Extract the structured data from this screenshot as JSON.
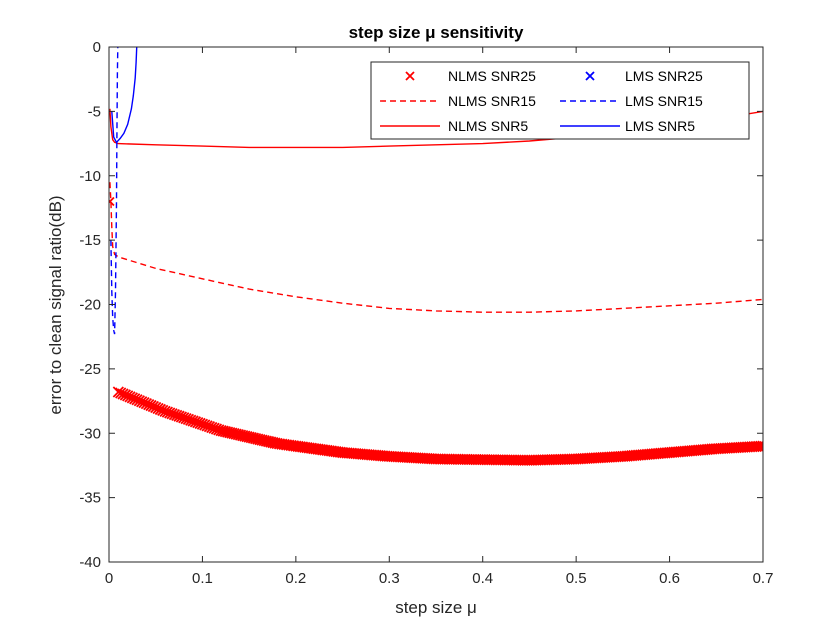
{
  "chart_data": {
    "type": "line",
    "title": "step size μ sensitivity",
    "xlabel": "step size μ",
    "ylabel": "error to clean signal ratio(dB)",
    "xlim": [
      0,
      0.7
    ],
    "ylim": [
      -40,
      0
    ],
    "xticks": [
      "0",
      "0.1",
      "0.2",
      "0.3",
      "0.4",
      "0.5",
      "0.6",
      "0.7"
    ],
    "yticks": [
      "-40",
      "-35",
      "-30",
      "-25",
      "-20",
      "-15",
      "-10",
      "-5",
      "0"
    ],
    "grid": false,
    "legend_position": "top-right",
    "series": [
      {
        "name": "NLMS SNR25",
        "color": "#ff0000",
        "style": "marker-x",
        "x": [
          0.001,
          0.01,
          0.02,
          0.04,
          0.06,
          0.08,
          0.1,
          0.12,
          0.15,
          0.18,
          0.2,
          0.25,
          0.3,
          0.35,
          0.4,
          0.45,
          0.5,
          0.55,
          0.6,
          0.65,
          0.7
        ],
        "y": [
          -12,
          -26.8,
          -27.1,
          -27.7,
          -28.3,
          -28.8,
          -29.3,
          -29.8,
          -30.3,
          -30.8,
          -31.0,
          -31.5,
          -31.8,
          -32.0,
          -32.05,
          -32.1,
          -32.0,
          -31.8,
          -31.5,
          -31.2,
          -31.0
        ]
      },
      {
        "name": "NLMS SNR15",
        "color": "#ff0000",
        "style": "dashed",
        "x": [
          0.001,
          0.002,
          0.003,
          0.004,
          0.006,
          0.01,
          0.05,
          0.1,
          0.15,
          0.2,
          0.25,
          0.3,
          0.35,
          0.4,
          0.45,
          0.5,
          0.55,
          0.6,
          0.65,
          0.7
        ],
        "y": [
          -10.5,
          -12,
          -14,
          -15.5,
          -16.1,
          -16.3,
          -17.2,
          -18.0,
          -18.8,
          -19.4,
          -19.9,
          -20.3,
          -20.5,
          -20.6,
          -20.6,
          -20.5,
          -20.3,
          -20.1,
          -19.9,
          -19.6
        ]
      },
      {
        "name": "NLMS SNR5",
        "color": "#ff0000",
        "style": "solid",
        "x": [
          0.001,
          0.002,
          0.004,
          0.006,
          0.01,
          0.05,
          0.1,
          0.15,
          0.2,
          0.25,
          0.3,
          0.35,
          0.4,
          0.45,
          0.5,
          0.55,
          0.6,
          0.65,
          0.7
        ],
        "y": [
          -4.8,
          -6.2,
          -7.2,
          -7.4,
          -7.5,
          -7.6,
          -7.7,
          -7.8,
          -7.8,
          -7.8,
          -7.7,
          -7.6,
          -7.5,
          -7.3,
          -7.0,
          -6.6,
          -6.1,
          -5.6,
          -5.0
        ]
      },
      {
        "name": "LMS SNR25",
        "color": "#0000ff",
        "style": "marker-x",
        "x": [],
        "y": []
      },
      {
        "name": "LMS SNR15",
        "color": "#0000ff",
        "style": "dashed",
        "x": [
          0.002,
          0.003,
          0.004,
          0.005,
          0.006,
          0.007,
          0.008,
          0.0085,
          0.009,
          0.0095,
          0.01
        ],
        "y": [
          -15,
          -19,
          -21,
          -22,
          -22.3,
          -19,
          -12,
          -7,
          -2,
          0.5,
          2
        ]
      },
      {
        "name": "LMS SNR5",
        "color": "#0000ff",
        "style": "solid",
        "x": [
          0.003,
          0.005,
          0.008,
          0.012,
          0.016,
          0.02,
          0.024,
          0.026,
          0.028,
          0.029,
          0.03
        ],
        "y": [
          -5,
          -7.0,
          -7.4,
          -7.1,
          -6.7,
          -6.0,
          -4.8,
          -3.8,
          -2.4,
          -1.2,
          0.5
        ]
      }
    ]
  }
}
